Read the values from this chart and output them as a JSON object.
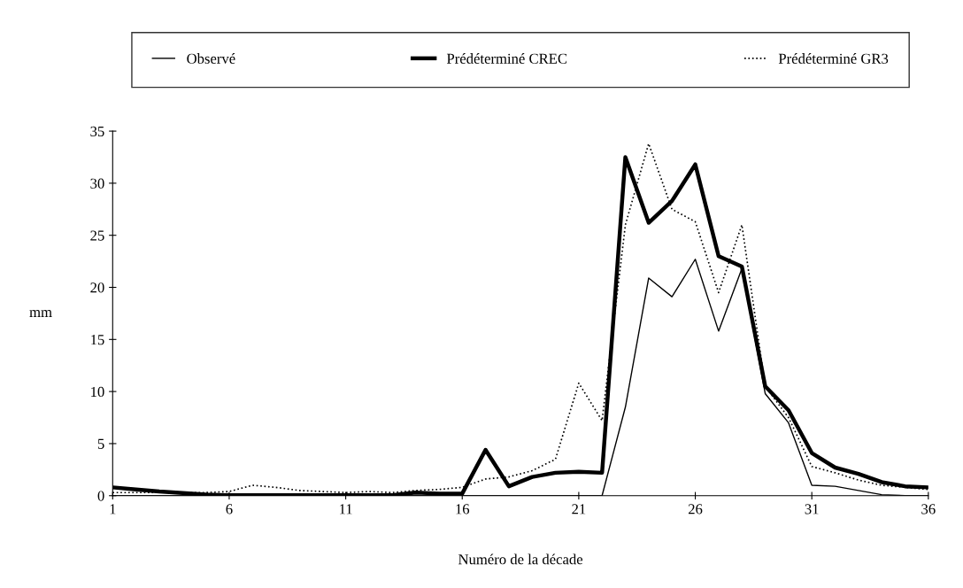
{
  "chart_data": {
    "type": "line",
    "xlabel": "Numéro de la décade",
    "ylabel": "mm",
    "x": [
      1,
      2,
      3,
      4,
      5,
      6,
      7,
      8,
      9,
      10,
      11,
      12,
      13,
      14,
      15,
      16,
      17,
      18,
      19,
      20,
      21,
      22,
      23,
      24,
      25,
      26,
      27,
      28,
      29,
      30,
      31,
      32,
      33,
      34,
      35,
      36
    ],
    "xlim": [
      1,
      36
    ],
    "xticks": [
      1,
      6,
      11,
      16,
      21,
      26,
      31,
      36
    ],
    "ylim": [
      0,
      35
    ],
    "yticks": [
      0,
      5,
      10,
      15,
      20,
      25,
      30,
      35
    ],
    "grid": false,
    "legend": "top",
    "marker": "none",
    "series": [
      {
        "name": "Observé",
        "color": "#000000",
        "line_style": "solid",
        "values": [
          0,
          0,
          0,
          0,
          0,
          0,
          0,
          0,
          0,
          0,
          0,
          0,
          0,
          0,
          0,
          0,
          0,
          0,
          0,
          0,
          0,
          0,
          8.5,
          20.9,
          19.1,
          22.7,
          15.8,
          21.8,
          9.8,
          7,
          1,
          0.9,
          0.5,
          0.1,
          0,
          0
        ]
      },
      {
        "name": "Prédéterminé CREC",
        "color": "#000000",
        "line_style": "solid",
        "values": [
          0.8,
          0.6,
          0.4,
          0.25,
          0.1,
          0.05,
          0.05,
          0.05,
          0.05,
          0.05,
          0.05,
          0.05,
          0.05,
          0.3,
          0.2,
          0.2,
          4.4,
          0.9,
          1.8,
          2.2,
          2.3,
          2.2,
          32.5,
          26.2,
          28.3,
          31.8,
          23,
          22,
          10.5,
          8.2,
          4.1,
          2.7,
          2.1,
          1.3,
          0.9,
          0.8
        ]
      },
      {
        "name": "Prédéterminé GR3",
        "color": "#000000",
        "line_style": "dotted",
        "values": [
          0.3,
          0.3,
          0.3,
          0.3,
          0.3,
          0.4,
          1,
          0.8,
          0.5,
          0.4,
          0.3,
          0.4,
          0.3,
          0.5,
          0.6,
          0.8,
          1.6,
          1.8,
          2.4,
          3.5,
          10.8,
          7.2,
          26,
          33.8,
          27.5,
          26.3,
          19.5,
          26,
          10.5,
          7.5,
          2.8,
          2.2,
          1.5,
          1,
          0.8,
          0.6
        ]
      }
    ]
  }
}
